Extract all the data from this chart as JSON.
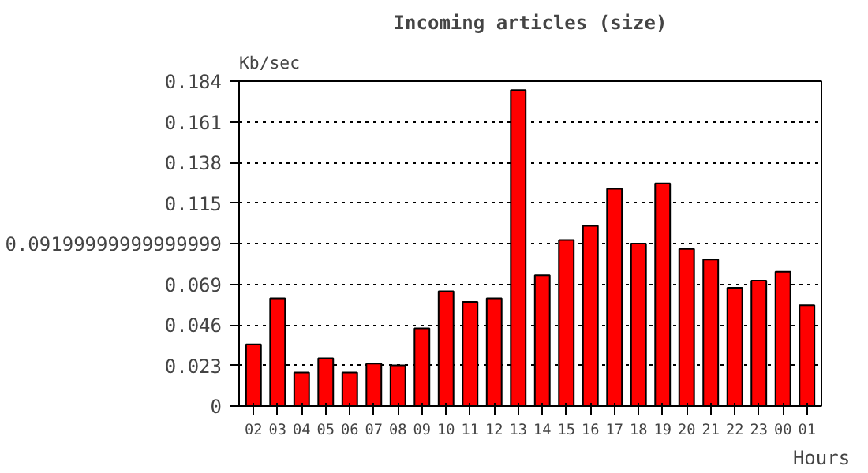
{
  "chart_data": {
    "type": "bar",
    "title": "Incoming articles (size)",
    "ylabel": "Kb/sec",
    "xlabel": "Hours",
    "categories": [
      "02",
      "03",
      "04",
      "05",
      "06",
      "07",
      "08",
      "09",
      "10",
      "11",
      "12",
      "13",
      "14",
      "15",
      "16",
      "17",
      "18",
      "19",
      "20",
      "21",
      "22",
      "23",
      "00",
      "01"
    ],
    "values": [
      0.035,
      0.061,
      0.019,
      0.027,
      0.019,
      0.024,
      0.023,
      0.044,
      0.065,
      0.059,
      0.061,
      0.179,
      0.074,
      0.094,
      0.102,
      0.123,
      0.092,
      0.126,
      0.089,
      0.083,
      0.067,
      0.071,
      0.076,
      0.057
    ],
    "color": "#ff0000",
    "ylim": [
      0,
      0.184
    ],
    "yticks": [
      0,
      0.023,
      0.046,
      0.069,
      {
        "value": 0.092,
        "label": "0.09199999999999999"
      },
      0.115,
      0.138,
      0.161,
      0.184
    ],
    "grid": "y",
    "line_style": "dotted"
  }
}
